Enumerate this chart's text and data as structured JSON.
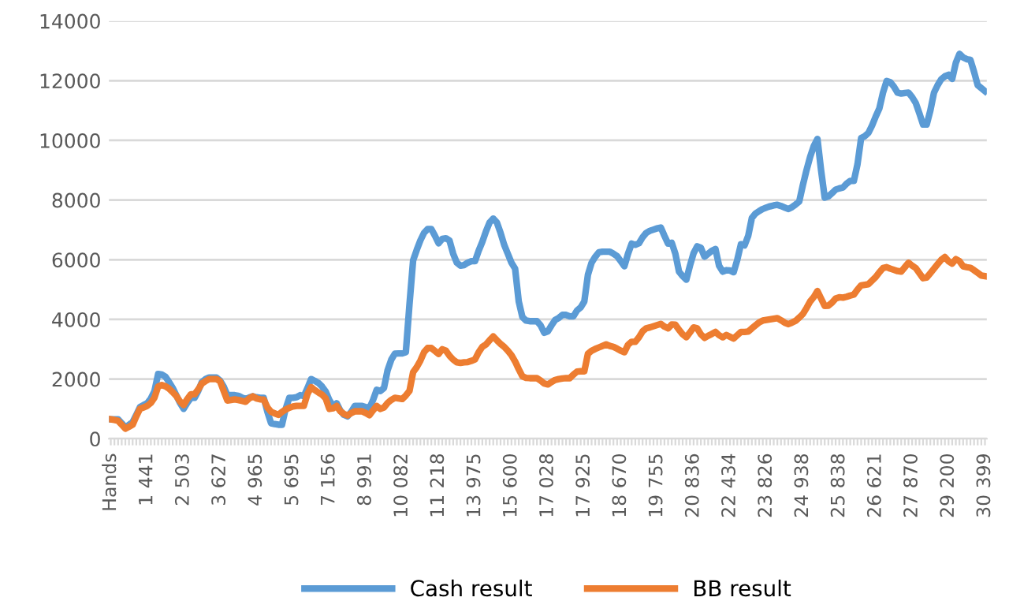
{
  "chart_data": {
    "type": "line",
    "categories": [
      "Hands",
      null,
      null,
      null,
      null,
      null,
      null,
      null,
      null,
      null,
      "1 441",
      null,
      null,
      null,
      null,
      null,
      null,
      null,
      null,
      null,
      "2 503",
      null,
      null,
      null,
      null,
      null,
      null,
      null,
      null,
      null,
      "3 627",
      null,
      null,
      null,
      null,
      null,
      null,
      null,
      null,
      null,
      "4 965",
      null,
      null,
      null,
      null,
      null,
      null,
      null,
      null,
      null,
      "5 695",
      null,
      null,
      null,
      null,
      null,
      null,
      null,
      null,
      null,
      "7 156",
      null,
      null,
      null,
      null,
      null,
      null,
      null,
      null,
      null,
      "8 991",
      null,
      null,
      null,
      null,
      null,
      null,
      null,
      null,
      null,
      "10 082",
      null,
      null,
      null,
      null,
      null,
      null,
      null,
      null,
      null,
      "11 218",
      null,
      null,
      null,
      null,
      null,
      null,
      null,
      null,
      null,
      "13 975",
      null,
      null,
      null,
      null,
      null,
      null,
      null,
      null,
      null,
      "15 600",
      null,
      null,
      null,
      null,
      null,
      null,
      null,
      null,
      null,
      "17 028",
      null,
      null,
      null,
      null,
      null,
      null,
      null,
      null,
      null,
      "17 925",
      null,
      null,
      null,
      null,
      null,
      null,
      null,
      null,
      null,
      "18 670",
      null,
      null,
      null,
      null,
      null,
      null,
      null,
      null,
      null,
      "19 755",
      null,
      null,
      null,
      null,
      null,
      null,
      null,
      null,
      null,
      "20 836",
      null,
      null,
      null,
      null,
      null,
      null,
      null,
      null,
      null,
      "22 434",
      null,
      null,
      null,
      null,
      null,
      null,
      null,
      null,
      null,
      "23 826",
      null,
      null,
      null,
      null,
      null,
      null,
      null,
      null,
      null,
      "24 938",
      null,
      null,
      null,
      null,
      null,
      null,
      null,
      null,
      null,
      "25 838",
      null,
      null,
      null,
      null,
      null,
      null,
      null,
      null,
      null,
      "26 621",
      null,
      null,
      null,
      null,
      null,
      null,
      null,
      null,
      null,
      "27 870",
      null,
      null,
      null,
      null,
      null,
      null,
      null,
      null,
      null,
      "29 200",
      null,
      null,
      null,
      null,
      null,
      null,
      null,
      null,
      null,
      "30 399"
    ],
    "series": [
      {
        "name": "Cash result",
        "color": "#5b9bd5",
        "values": [
          650,
          650,
          650,
          520,
          380,
          470,
          560,
          800,
          1060,
          1130,
          1190,
          1350,
          1600,
          2170,
          2150,
          2080,
          1900,
          1700,
          1450,
          1200,
          1000,
          1200,
          1370,
          1370,
          1600,
          1900,
          2000,
          2050,
          2050,
          2050,
          1950,
          1750,
          1460,
          1460,
          1460,
          1440,
          1380,
          1330,
          1380,
          1420,
          1390,
          1370,
          1370,
          900,
          520,
          490,
          470,
          470,
          1000,
          1370,
          1370,
          1390,
          1460,
          1430,
          1700,
          2000,
          1940,
          1870,
          1750,
          1580,
          1300,
          1100,
          1190,
          950,
          800,
          750,
          900,
          1100,
          1100,
          1100,
          1060,
          1020,
          1300,
          1640,
          1600,
          1700,
          2300,
          2650,
          2850,
          2860,
          2860,
          2900,
          4500,
          5980,
          6330,
          6650,
          6900,
          7030,
          7030,
          6800,
          6550,
          6700,
          6720,
          6640,
          6200,
          5900,
          5800,
          5820,
          5900,
          5950,
          5950,
          6300,
          6600,
          6950,
          7250,
          7380,
          7250,
          6900,
          6500,
          6200,
          5900,
          5700,
          4600,
          4080,
          3960,
          3940,
          3940,
          3940,
          3800,
          3550,
          3600,
          3800,
          3980,
          4050,
          4150,
          4150,
          4100,
          4100,
          4300,
          4400,
          4600,
          5500,
          5900,
          6100,
          6250,
          6270,
          6270,
          6270,
          6200,
          6120,
          5950,
          5780,
          6200,
          6540,
          6500,
          6550,
          6750,
          6900,
          6970,
          7010,
          7050,
          7080,
          6800,
          6540,
          6570,
          6200,
          5600,
          5450,
          5330,
          5800,
          6220,
          6450,
          6400,
          6100,
          6200,
          6300,
          6360,
          5800,
          5600,
          5650,
          5640,
          5580,
          6000,
          6520,
          6480,
          6800,
          7400,
          7550,
          7630,
          7700,
          7750,
          7790,
          7820,
          7840,
          7800,
          7750,
          7700,
          7760,
          7850,
          7950,
          8500,
          9000,
          9450,
          9810,
          10050,
          9000,
          8080,
          8120,
          8230,
          8350,
          8390,
          8420,
          8550,
          8640,
          8640,
          9200,
          10080,
          10140,
          10250,
          10500,
          10800,
          11070,
          11600,
          11990,
          11950,
          11800,
          11600,
          11570,
          11590,
          11600,
          11450,
          11250,
          10900,
          10530,
          10530,
          11000,
          11600,
          11850,
          12050,
          12150,
          12200,
          12060,
          12600,
          12900,
          12780,
          12720,
          12700,
          12300,
          11850,
          11750,
          11650
        ]
      },
      {
        "name": "BB result",
        "color": "#ed7d31",
        "values": [
          650,
          630,
          600,
          470,
          340,
          400,
          470,
          750,
          1000,
          1050,
          1100,
          1200,
          1380,
          1750,
          1800,
          1760,
          1680,
          1560,
          1430,
          1250,
          1130,
          1330,
          1490,
          1490,
          1650,
          1850,
          1930,
          2000,
          2000,
          2000,
          1920,
          1600,
          1280,
          1300,
          1320,
          1300,
          1270,
          1240,
          1350,
          1420,
          1350,
          1320,
          1310,
          1050,
          900,
          850,
          800,
          900,
          980,
          1040,
          1080,
          1100,
          1100,
          1100,
          1500,
          1730,
          1630,
          1550,
          1480,
          1350,
          1000,
          1020,
          1100,
          920,
          830,
          780,
          860,
          920,
          920,
          920,
          860,
          790,
          950,
          1100,
          1000,
          1050,
          1200,
          1300,
          1370,
          1350,
          1330,
          1450,
          1600,
          2230,
          2400,
          2620,
          2900,
          3040,
          3040,
          2940,
          2840,
          3000,
          2950,
          2780,
          2650,
          2560,
          2540,
          2560,
          2570,
          2610,
          2660,
          2900,
          3080,
          3160,
          3300,
          3430,
          3300,
          3180,
          3080,
          2950,
          2800,
          2590,
          2330,
          2090,
          2040,
          2030,
          2030,
          2030,
          1950,
          1850,
          1820,
          1900,
          1970,
          2000,
          2020,
          2030,
          2030,
          2150,
          2250,
          2260,
          2260,
          2850,
          2950,
          3010,
          3060,
          3110,
          3160,
          3110,
          3080,
          3020,
          2950,
          2900,
          3150,
          3250,
          3250,
          3400,
          3600,
          3700,
          3730,
          3770,
          3810,
          3850,
          3760,
          3700,
          3830,
          3820,
          3650,
          3500,
          3400,
          3560,
          3730,
          3700,
          3500,
          3380,
          3450,
          3510,
          3580,
          3470,
          3400,
          3480,
          3420,
          3360,
          3470,
          3580,
          3580,
          3590,
          3700,
          3800,
          3900,
          3960,
          3980,
          4000,
          4020,
          4040,
          3970,
          3890,
          3840,
          3890,
          3950,
          4060,
          4180,
          4380,
          4600,
          4750,
          4950,
          4700,
          4450,
          4460,
          4560,
          4700,
          4740,
          4730,
          4760,
          4800,
          4830,
          5000,
          5140,
          5160,
          5180,
          5300,
          5420,
          5580,
          5720,
          5750,
          5700,
          5660,
          5620,
          5600,
          5750,
          5900,
          5800,
          5720,
          5550,
          5380,
          5400,
          5550,
          5700,
          5850,
          6000,
          6090,
          5950,
          5870,
          6020,
          5950,
          5780,
          5750,
          5730,
          5650,
          5560,
          5470,
          5450
        ]
      }
    ],
    "ylim": [
      0,
      14000
    ],
    "yticks": [
      0,
      2000,
      4000,
      6000,
      8000,
      10000,
      12000,
      14000
    ],
    "grid": "y",
    "legend": "bottom"
  }
}
